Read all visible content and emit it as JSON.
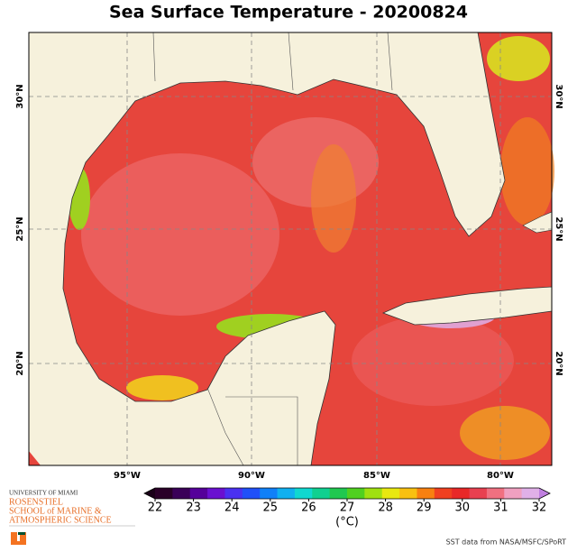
{
  "title": "Sea Surface Temperature - 20200824",
  "map": {
    "lon_labels": [
      "95°W",
      "90°W",
      "85°W",
      "80°W"
    ],
    "lat_labels": [
      "30°N",
      "25°N",
      "20°N"
    ]
  },
  "colorbar": {
    "range": [
      22,
      32
    ],
    "ticks": [
      22,
      23,
      24,
      25,
      26,
      27,
      28,
      29,
      30,
      31,
      32
    ],
    "label": "(°C)",
    "colors": [
      "#2a0028",
      "#3a0058",
      "#55009a",
      "#6a10d0",
      "#4a30f0",
      "#2050f8",
      "#1080f8",
      "#10b0f0",
      "#10d8d0",
      "#10d090",
      "#20c850",
      "#50d020",
      "#a0e010",
      "#e8e810",
      "#f8c010",
      "#f88010",
      "#f04020",
      "#e82828",
      "#e84050",
      "#f07080",
      "#f0a0c0",
      "#e0b0e8"
    ],
    "under": "#1a0018",
    "over": "#c080e0"
  },
  "logo": {
    "line1": "UNIVERSITY OF MIAMI",
    "line2": "ROSENSTIEL",
    "line3": "SCHOOL of MARINE &",
    "line4": "ATMOSPHERIC SCIENCE"
  },
  "credit": "SST data from NASA/MSFC/SPoRT"
}
